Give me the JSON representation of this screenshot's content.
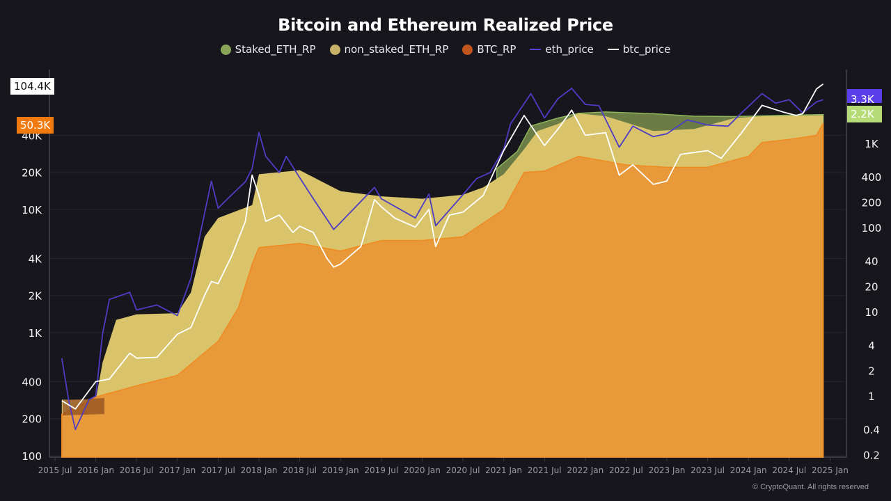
{
  "chart_data": {
    "type": "area",
    "title": "Bitcoin and Ethereum Realized Price",
    "legend_position": "top",
    "grid": true,
    "x_ticks": [
      "2015 Jul",
      "2016 Jan",
      "2016 Jul",
      "2017 Jan",
      "2017 Jul",
      "2018 Jan",
      "2018 Jul",
      "2019 Jan",
      "2019 Jul",
      "2020 Jan",
      "2020 Jul",
      "2021 Jan",
      "2021 Jul",
      "2022 Jan",
      "2022 Jul",
      "2023 Jan",
      "2023 Jul",
      "2024 Jan",
      "2024 Jul",
      "2025 Jan"
    ],
    "xlim": [
      "2015-07",
      "2025-01"
    ],
    "y_left": {
      "scale": "log",
      "ticks": [
        100,
        200,
        400,
        1000,
        2000,
        4000,
        10000,
        20000,
        40000
      ],
      "tick_labels": [
        "100",
        "200",
        "400",
        "1K",
        "2K",
        "4K",
        "10K",
        "20K",
        "40K"
      ],
      "ylim": [
        100,
        120000
      ]
    },
    "y_right": {
      "scale": "log",
      "ticks": [
        0.2,
        0.4,
        1,
        2,
        4,
        10,
        20,
        40,
        100,
        200,
        400,
        1000
      ],
      "tick_labels": [
        "0.2",
        "0.4",
        "1",
        "2",
        "4",
        "10",
        "20",
        "40",
        "100",
        "200",
        "400",
        "1K"
      ],
      "ylim": [
        0.2,
        5000
      ]
    },
    "last_value_labels": {
      "btc_price": "104.4K",
      "BTC_RP": "50.3K",
      "eth_price": "3.3K",
      "ETH_RP": "2.2K"
    },
    "series": [
      {
        "name": "Staked_ETH_RP",
        "type": "area",
        "axis": "right",
        "color": "#6b7d45",
        "legend_color": "#8aa55a",
        "points": [
          [
            "2020-12",
            500
          ],
          [
            "2021-03",
            800
          ],
          [
            "2021-05",
            1610
          ],
          [
            "2021-09",
            2000
          ],
          [
            "2021-12",
            2270
          ],
          [
            "2022-04",
            2360
          ],
          [
            "2022-11",
            2250
          ],
          [
            "2023-05",
            2100
          ],
          [
            "2023-11",
            2080
          ],
          [
            "2024-06",
            2150
          ],
          [
            "2024-12",
            2200
          ]
        ]
      },
      {
        "name": "non_staked_ETH_RP",
        "type": "area",
        "axis": "right",
        "color": "#d9c46c",
        "legend_color": "#c8b26a",
        "points": [
          [
            "2015-08",
            0.9
          ],
          [
            "2016-01",
            0.9
          ],
          [
            "2016-02",
            2.5
          ],
          [
            "2016-04",
            8
          ],
          [
            "2016-07",
            9.3
          ],
          [
            "2017-01",
            9.6
          ],
          [
            "2017-03",
            17
          ],
          [
            "2017-05",
            78
          ],
          [
            "2017-07",
            130
          ],
          [
            "2017-12",
            185
          ],
          [
            "2018-01",
            430
          ],
          [
            "2018-07",
            480
          ],
          [
            "2018-10",
            360
          ],
          [
            "2019-01",
            270
          ],
          [
            "2019-07",
            235
          ],
          [
            "2020-01",
            220
          ],
          [
            "2020-07",
            245
          ],
          [
            "2020-10",
            300
          ],
          [
            "2021-01",
            430
          ],
          [
            "2021-04",
            850
          ],
          [
            "2021-06",
            1400
          ],
          [
            "2021-09",
            1700
          ],
          [
            "2021-12",
            2270
          ],
          [
            "2022-04",
            2100
          ],
          [
            "2022-11",
            1400
          ],
          [
            "2023-05",
            1480
          ],
          [
            "2023-11",
            2000
          ],
          [
            "2024-03",
            2100
          ],
          [
            "2024-12",
            2150
          ]
        ]
      },
      {
        "name": "BTC_RP",
        "type": "area",
        "axis": "left",
        "color": "#e8993a",
        "legend_color": "#c0561e",
        "points": [
          [
            "2015-08",
            218
          ],
          [
            "2016-01",
            300
          ],
          [
            "2016-07",
            370
          ],
          [
            "2017-01",
            450
          ],
          [
            "2017-07",
            850
          ],
          [
            "2017-10",
            1600
          ],
          [
            "2017-12",
            3600
          ],
          [
            "2018-01",
            4900
          ],
          [
            "2018-07",
            5300
          ],
          [
            "2019-01",
            4600
          ],
          [
            "2019-07",
            5600
          ],
          [
            "2020-01",
            5600
          ],
          [
            "2020-07",
            6000
          ],
          [
            "2021-01",
            10000
          ],
          [
            "2021-04",
            20000
          ],
          [
            "2021-07",
            20500
          ],
          [
            "2021-12",
            27000
          ],
          [
            "2022-07",
            23000
          ],
          [
            "2023-01",
            22000
          ],
          [
            "2023-07",
            22000
          ],
          [
            "2024-01",
            27000
          ],
          [
            "2024-03",
            35000
          ],
          [
            "2024-07",
            37000
          ],
          [
            "2024-11",
            40000
          ],
          [
            "2024-12",
            50300
          ]
        ]
      },
      {
        "name": "eth_price",
        "type": "line",
        "axis": "right",
        "color": "#4d3cc4",
        "points": [
          [
            "2015-08",
            2.8
          ],
          [
            "2015-09",
            0.9
          ],
          [
            "2015-10",
            0.4
          ],
          [
            "2015-12",
            0.9
          ],
          [
            "2016-01",
            1
          ],
          [
            "2016-02",
            5.5
          ],
          [
            "2016-03",
            14
          ],
          [
            "2016-06",
            17
          ],
          [
            "2016-07",
            10.5
          ],
          [
            "2016-10",
            12
          ],
          [
            "2017-01",
            9
          ],
          [
            "2017-03",
            25
          ],
          [
            "2017-06",
            355
          ],
          [
            "2017-07",
            170
          ],
          [
            "2017-09",
            245
          ],
          [
            "2017-11",
            350
          ],
          [
            "2017-12",
            500
          ],
          [
            "2018-01",
            1350
          ],
          [
            "2018-02",
            700
          ],
          [
            "2018-04",
            450
          ],
          [
            "2018-05",
            700
          ],
          [
            "2018-07",
            390
          ],
          [
            "2018-09",
            220
          ],
          [
            "2018-12",
            95
          ],
          [
            "2019-01",
            115
          ],
          [
            "2019-06",
            300
          ],
          [
            "2019-07",
            220
          ],
          [
            "2019-12",
            130
          ],
          [
            "2020-02",
            250
          ],
          [
            "2020-03",
            105
          ],
          [
            "2020-07",
            245
          ],
          [
            "2020-09",
            380
          ],
          [
            "2020-11",
            450
          ],
          [
            "2021-01",
            850
          ],
          [
            "2021-02",
            1700
          ],
          [
            "2021-05",
            3900
          ],
          [
            "2021-07",
            2000
          ],
          [
            "2021-09",
            3400
          ],
          [
            "2021-11",
            4500
          ],
          [
            "2022-01",
            2900
          ],
          [
            "2022-03",
            2800
          ],
          [
            "2022-06",
            900
          ],
          [
            "2022-08",
            1600
          ],
          [
            "2022-11",
            1200
          ],
          [
            "2023-01",
            1300
          ],
          [
            "2023-04",
            1900
          ],
          [
            "2023-07",
            1650
          ],
          [
            "2023-10",
            1600
          ],
          [
            "2023-12",
            2300
          ],
          [
            "2024-03",
            3900
          ],
          [
            "2024-05",
            3000
          ],
          [
            "2024-07",
            3300
          ],
          [
            "2024-09",
            2300
          ],
          [
            "2024-11",
            3100
          ],
          [
            "2024-12",
            3300
          ]
        ]
      },
      {
        "name": "btc_price",
        "type": "line",
        "axis": "left",
        "color": "#ffffff",
        "points": [
          [
            "2015-08",
            280
          ],
          [
            "2015-10",
            240
          ],
          [
            "2016-01",
            400
          ],
          [
            "2016-03",
            420
          ],
          [
            "2016-06",
            680
          ],
          [
            "2016-07",
            620
          ],
          [
            "2016-10",
            630
          ],
          [
            "2017-01",
            970
          ],
          [
            "2017-03",
            1100
          ],
          [
            "2017-05",
            2000
          ],
          [
            "2017-06",
            2600
          ],
          [
            "2017-07",
            2500
          ],
          [
            "2017-09",
            4200
          ],
          [
            "2017-11",
            8000
          ],
          [
            "2017-12",
            19000
          ],
          [
            "2018-01",
            13000
          ],
          [
            "2018-02",
            8000
          ],
          [
            "2018-04",
            9000
          ],
          [
            "2018-06",
            6500
          ],
          [
            "2018-07",
            7300
          ],
          [
            "2018-09",
            6500
          ],
          [
            "2018-11",
            4000
          ],
          [
            "2018-12",
            3400
          ],
          [
            "2019-01",
            3600
          ],
          [
            "2019-04",
            5000
          ],
          [
            "2019-06",
            12000
          ],
          [
            "2019-07",
            10500
          ],
          [
            "2019-09",
            8500
          ],
          [
            "2019-12",
            7200
          ],
          [
            "2020-02",
            10000
          ],
          [
            "2020-03",
            5000
          ],
          [
            "2020-05",
            9000
          ],
          [
            "2020-07",
            9500
          ],
          [
            "2020-10",
            13000
          ],
          [
            "2021-01",
            30000
          ],
          [
            "2021-04",
            58000
          ],
          [
            "2021-07",
            33000
          ],
          [
            "2021-09",
            45000
          ],
          [
            "2021-11",
            64000
          ],
          [
            "2022-01",
            40000
          ],
          [
            "2022-04",
            42000
          ],
          [
            "2022-06",
            19000
          ],
          [
            "2022-08",
            23000
          ],
          [
            "2022-11",
            16000
          ],
          [
            "2023-01",
            17000
          ],
          [
            "2023-03",
            28000
          ],
          [
            "2023-07",
            30000
          ],
          [
            "2023-09",
            26000
          ],
          [
            "2023-12",
            42000
          ],
          [
            "2024-03",
            70000
          ],
          [
            "2024-06",
            62000
          ],
          [
            "2024-08",
            58000
          ],
          [
            "2024-09",
            60000
          ],
          [
            "2024-11",
            95000
          ],
          [
            "2024-12",
            104400
          ]
        ]
      }
    ]
  },
  "colors": {
    "background": "#17161c",
    "btc_label": "#f07a10",
    "eth_price_label": "#5a3ee8",
    "eth_rp_label": "#b6dc78"
  },
  "footer": "© CryptoQuant. All rights reserved"
}
